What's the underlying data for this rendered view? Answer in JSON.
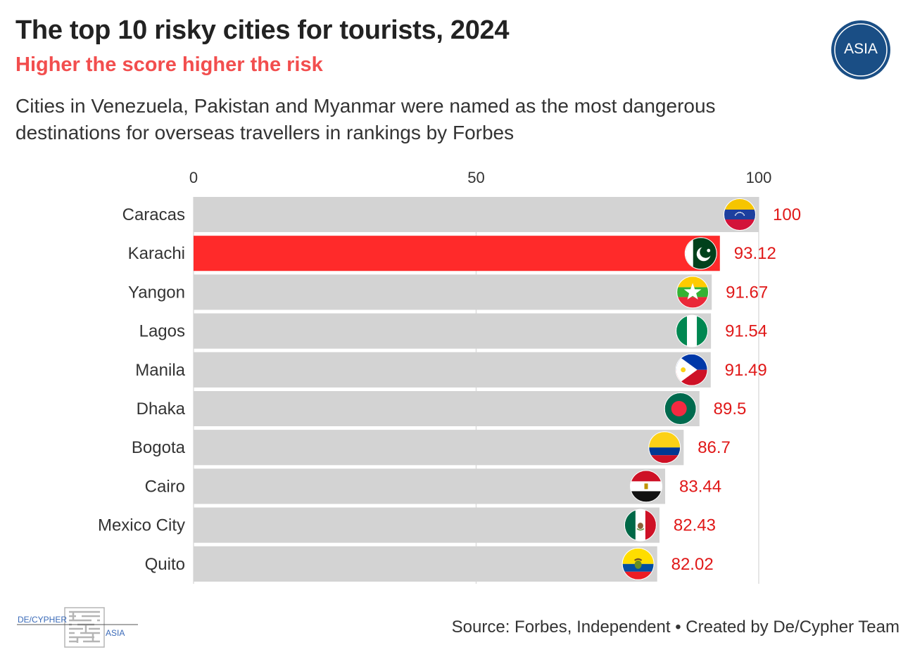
{
  "header": {
    "title": "The top 10 risky cities for tourists, 2024",
    "subtitle": "Higher the score higher the risk",
    "description": "Cities in Venezuela, Pakistan and Myanmar were named as the most dangerous destinations for overseas travellers in rankings by Forbes"
  },
  "logo": {
    "text": "ASIA",
    "color": "#1a4e85"
  },
  "footer": {
    "source": "Source: Forbes, Independent • Created by De/Cypher Team",
    "brand_left": "DE/CYPHER",
    "brand_right": "ASIA"
  },
  "colors": {
    "background_bar": "#d3d3d3",
    "highlight": "#ff2a2a",
    "value_text": "#e01818"
  },
  "chart_data": {
    "type": "bar",
    "orientation": "horizontal",
    "title": "The top 10 risky cities for tourists, 2024",
    "xlim": [
      0,
      100
    ],
    "xticks": [
      0,
      50,
      100
    ],
    "highlight": "Karachi",
    "categories": [
      "Caracas",
      "Karachi",
      "Yangon",
      "Lagos",
      "Manila",
      "Dhaka",
      "Bogota",
      "Cairo",
      "Mexico City",
      "Quito"
    ],
    "values": [
      100,
      93.12,
      91.67,
      91.54,
      91.49,
      89.5,
      86.7,
      83.44,
      82.43,
      82.02
    ],
    "value_labels": [
      "100",
      "93.12",
      "91.67",
      "91.54",
      "91.49",
      "89.5",
      "86.7",
      "83.44",
      "82.43",
      "82.02"
    ],
    "flags": [
      "venezuela-flag-icon",
      "pakistan-flag-icon",
      "myanmar-flag-icon",
      "nigeria-flag-icon",
      "philippines-flag-icon",
      "bangladesh-flag-icon",
      "colombia-flag-icon",
      "egypt-flag-icon",
      "mexico-flag-icon",
      "ecuador-flag-icon"
    ]
  }
}
